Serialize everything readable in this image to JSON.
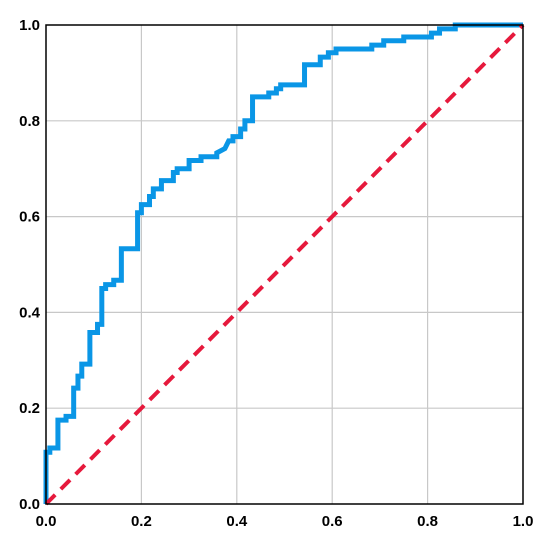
{
  "chart_data": {
    "type": "line",
    "title": "",
    "xlabel": "",
    "ylabel": "",
    "xlim": [
      0,
      1
    ],
    "ylim": [
      0,
      1
    ],
    "grid": true,
    "x_ticks": [
      "0.0",
      "0.2",
      "0.4",
      "0.6",
      "0.8",
      "1.0"
    ],
    "y_ticks": [
      "0.0",
      "0.2",
      "0.4",
      "0.6",
      "0.8",
      "1.0"
    ],
    "colors": {
      "roc": "#0a96e6",
      "reference": "#e6193c",
      "grid": "#c8c8c8",
      "frame": "#000000"
    },
    "series": [
      {
        "style": "solid",
        "x": [
          0.0,
          0.0,
          0.008,
          0.008,
          0.025,
          0.025,
          0.042,
          0.042,
          0.058,
          0.058,
          0.067,
          0.067,
          0.075,
          0.075,
          0.092,
          0.092,
          0.108,
          0.108,
          0.117,
          0.117,
          0.125,
          0.125,
          0.142,
          0.142,
          0.158,
          0.158,
          0.192,
          0.192,
          0.2,
          0.2,
          0.217,
          0.217,
          0.225,
          0.225,
          0.242,
          0.242,
          0.267,
          0.267,
          0.275,
          0.275,
          0.3,
          0.3,
          0.325,
          0.325,
          0.358,
          0.358,
          0.375,
          0.383,
          0.392,
          0.392,
          0.408,
          0.408,
          0.417,
          0.417,
          0.433,
          0.433,
          0.467,
          0.467,
          0.483,
          0.483,
          0.492,
          0.492,
          0.542,
          0.542,
          0.575,
          0.575,
          0.592,
          0.592,
          0.608,
          0.608,
          0.683,
          0.683,
          0.708,
          0.708,
          0.75,
          0.75,
          0.808,
          0.808,
          0.825,
          0.825,
          0.858,
          0.858,
          0.9,
          0.9,
          0.933,
          0.933,
          0.967,
          0.967,
          1.0
        ],
        "y": [
          0.0,
          0.108,
          0.108,
          0.117,
          0.117,
          0.175,
          0.175,
          0.183,
          0.183,
          0.242,
          0.242,
          0.267,
          0.267,
          0.292,
          0.292,
          0.358,
          0.358,
          0.375,
          0.375,
          0.45,
          0.45,
          0.458,
          0.458,
          0.467,
          0.467,
          0.533,
          0.533,
          0.608,
          0.608,
          0.625,
          0.625,
          0.642,
          0.642,
          0.658,
          0.658,
          0.675,
          0.675,
          0.692,
          0.692,
          0.7,
          0.7,
          0.717,
          0.717,
          0.725,
          0.725,
          0.733,
          0.742,
          0.758,
          0.758,
          0.767,
          0.767,
          0.783,
          0.783,
          0.8,
          0.8,
          0.85,
          0.85,
          0.858,
          0.858,
          0.867,
          0.867,
          0.875,
          0.875,
          0.917,
          0.917,
          0.933,
          0.933,
          0.942,
          0.942,
          0.95,
          0.95,
          0.958,
          0.958,
          0.967,
          0.967,
          0.975,
          0.975,
          0.983,
          0.983,
          0.992,
          0.992,
          1.0,
          1.0,
          1.0,
          1.0,
          1.0,
          1.0,
          1.0,
          1.0
        ]
      },
      {
        "style": "dashed",
        "x": [
          0,
          1
        ],
        "y": [
          0,
          1
        ]
      }
    ]
  }
}
